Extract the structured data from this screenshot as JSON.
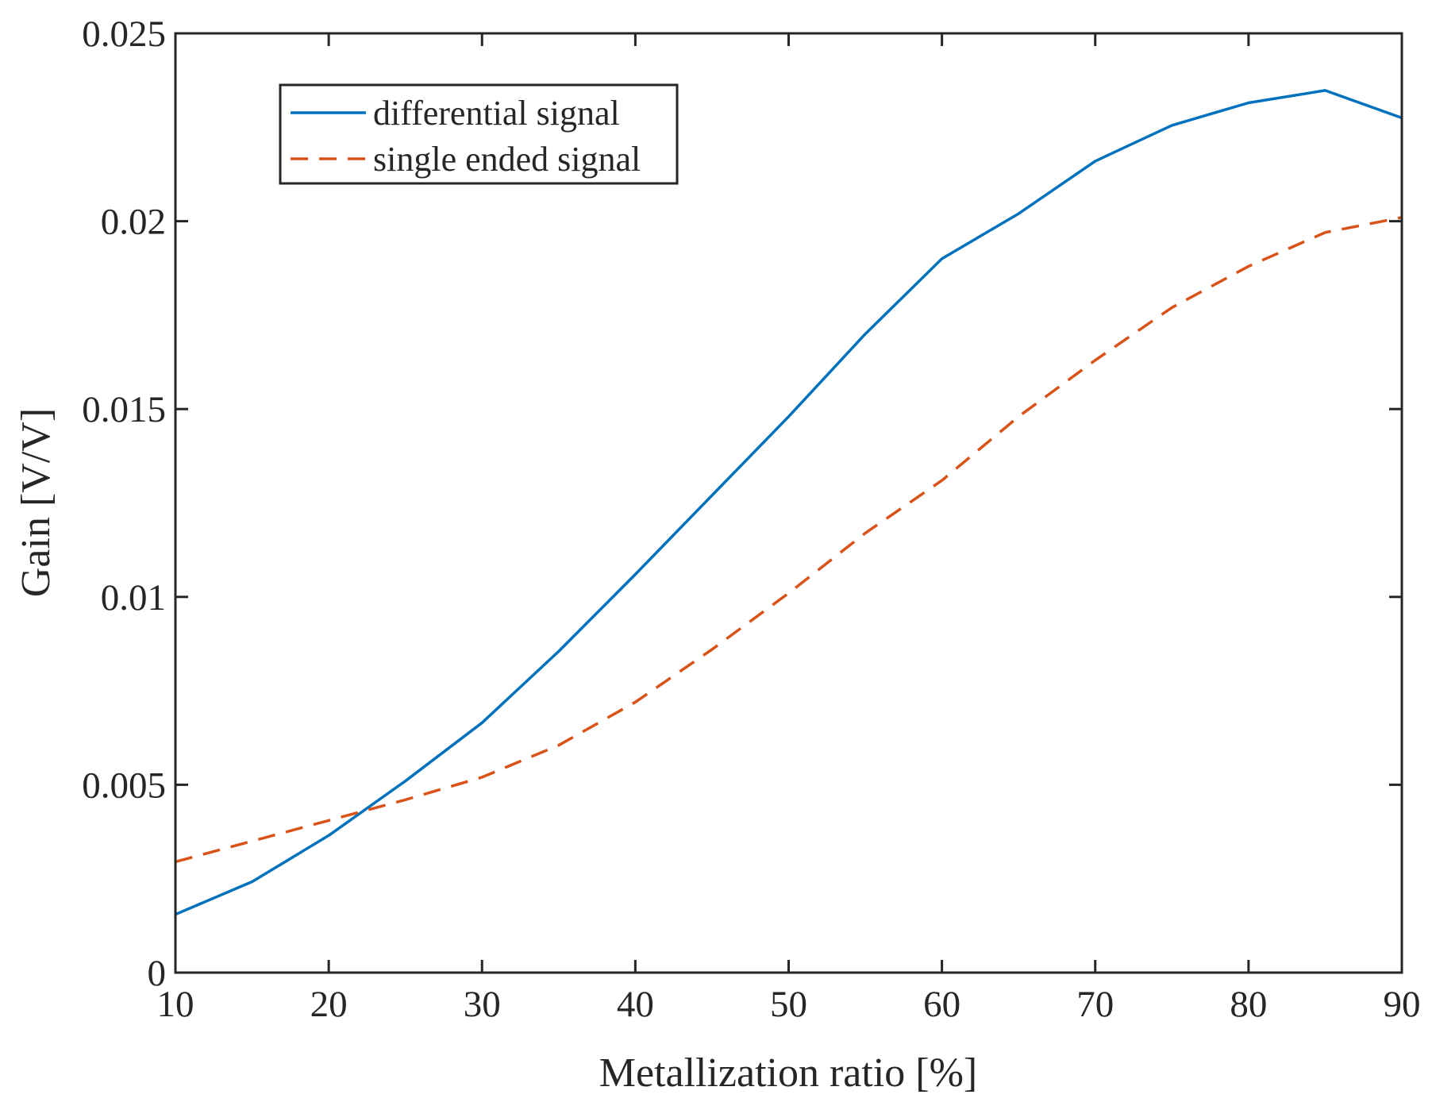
{
  "chart_data": {
    "type": "line",
    "title": "",
    "xlabel": "Metallization ratio [%]",
    "ylabel": "Gain [V/V]",
    "xlim": [
      10,
      90
    ],
    "ylim": [
      0,
      0.025
    ],
    "xticks": [
      10,
      20,
      30,
      40,
      50,
      60,
      70,
      80,
      90
    ],
    "xtick_labels": [
      "10",
      "20",
      "30",
      "40",
      "50",
      "60",
      "70",
      "80",
      "90"
    ],
    "yticks": [
      0,
      0.005,
      0.01,
      0.015,
      0.02,
      0.025
    ],
    "ytick_labels": [
      "0",
      "0.005",
      "0.01",
      "0.015",
      "0.02",
      "0.025"
    ],
    "grid": false,
    "legend_position": "top-left",
    "x": [
      10,
      15,
      20,
      25,
      30,
      35,
      40,
      45,
      50,
      55,
      60,
      65,
      70,
      75,
      80,
      85,
      90
    ],
    "series": [
      {
        "name": "differential signal",
        "color": "#0072BD",
        "style": "solid",
        "values": [
          0.00155,
          0.00242,
          0.00365,
          0.0051,
          0.00665,
          0.00855,
          0.0106,
          0.0127,
          0.0148,
          0.017,
          0.019,
          0.0202,
          0.0216,
          0.02255,
          0.02315,
          0.02348,
          0.02275
        ]
      },
      {
        "name": "single ended signal",
        "color": "#D95319",
        "style": "dashed",
        "values": [
          0.00295,
          0.0035,
          0.00405,
          0.0046,
          0.0052,
          0.00605,
          0.0072,
          0.0086,
          0.0101,
          0.0117,
          0.0131,
          0.0148,
          0.0163,
          0.0177,
          0.0188,
          0.0197,
          0.0201
        ]
      }
    ]
  }
}
